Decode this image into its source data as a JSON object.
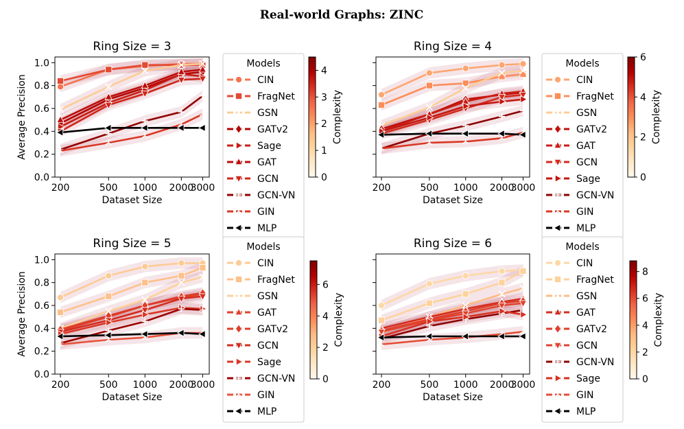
{
  "figure_title": "Real-world Graphs: ZINC",
  "chart_data": [
    {
      "type": "line",
      "title": "Ring Size = 3",
      "xlabel": "Dataset Size",
      "ylabel": "Average Precision",
      "xscale": "log",
      "xlim": [
        180,
        3400
      ],
      "ylim": [
        0.0,
        1.05
      ],
      "x_ticks": [
        200,
        500,
        1000,
        2000,
        3000
      ],
      "x_tick_labels": [
        "200",
        "500",
        "1000",
        "2000",
        "3000"
      ],
      "y_ticks": [
        0.0,
        0.2,
        0.4,
        0.6,
        0.8,
        1.0
      ],
      "y_tick_labels": [
        "0.0",
        "0.2",
        "0.4",
        "0.6",
        "0.8",
        "1.0"
      ],
      "legend_title": "Models",
      "colorbar": {
        "label": "Complexity",
        "min": 0,
        "max": 4.5,
        "ticks": [
          0,
          1,
          2,
          3,
          4
        ],
        "tick_labels": [
          "0",
          "1",
          "2",
          "3",
          "4"
        ]
      },
      "x": [
        200,
        500,
        1000,
        2000,
        3000
      ],
      "series": [
        {
          "name": "CIN",
          "complexity": 2.6,
          "values": [
            0.79,
            0.94,
            0.97,
            0.99,
            0.99
          ]
        },
        {
          "name": "FragNet",
          "complexity": 3.1,
          "values": [
            0.84,
            0.94,
            0.98,
            0.98,
            0.98
          ]
        },
        {
          "name": "GSN",
          "complexity": 1.3,
          "values": [
            0.59,
            0.79,
            0.93,
            0.98,
            0.99
          ]
        },
        {
          "name": "GATv2",
          "complexity": 3.9,
          "values": [
            0.47,
            0.68,
            0.78,
            0.9,
            0.92
          ]
        },
        {
          "name": "Sage",
          "complexity": 3.6,
          "values": [
            0.44,
            0.65,
            0.76,
            0.9,
            0.88
          ]
        },
        {
          "name": "GAT",
          "complexity": 3.8,
          "values": [
            0.5,
            0.7,
            0.8,
            0.92,
            0.94
          ]
        },
        {
          "name": "GCN",
          "complexity": 3.5,
          "values": [
            0.4,
            0.63,
            0.73,
            0.85,
            0.86
          ]
        },
        {
          "name": "GCN-VN",
          "complexity": 4.3,
          "values": [
            0.24,
            0.38,
            0.49,
            0.57,
            0.71
          ]
        },
        {
          "name": "GIN",
          "complexity": 3.3,
          "values": [
            0.23,
            0.3,
            0.36,
            0.46,
            0.55
          ]
        },
        {
          "name": "MLP",
          "complexity": 0,
          "values": [
            0.39,
            0.43,
            0.43,
            0.43,
            0.43
          ]
        }
      ]
    },
    {
      "type": "line",
      "title": "Ring Size = 4",
      "xlabel": "Dataset Size",
      "ylabel": "",
      "xscale": "log",
      "xlim": [
        180,
        3400
      ],
      "ylim": [
        0.0,
        1.05
      ],
      "x_ticks": [
        200,
        500,
        1000,
        2000,
        3000
      ],
      "x_tick_labels": [
        "200",
        "500",
        "1000",
        "2000",
        "3000"
      ],
      "y_ticks": [
        0.0,
        0.2,
        0.4,
        0.6,
        0.8,
        1.0
      ],
      "y_tick_labels": [
        "",
        "",
        "",
        "",
        "",
        ""
      ],
      "legend_title": "Models",
      "colorbar": {
        "label": "Complexity",
        "min": 0,
        "max": 6,
        "ticks": [
          0,
          2,
          4,
          6
        ],
        "tick_labels": [
          "0",
          "2",
          "4",
          "6"
        ]
      },
      "x": [
        200,
        500,
        1000,
        2000,
        3000
      ],
      "series": [
        {
          "name": "CIN",
          "complexity": 2.6,
          "values": [
            0.72,
            0.91,
            0.95,
            0.98,
            0.99
          ]
        },
        {
          "name": "FragNet",
          "complexity": 3.0,
          "values": [
            0.63,
            0.8,
            0.82,
            0.88,
            0.9
          ]
        },
        {
          "name": "GSN",
          "complexity": 1.7,
          "values": [
            0.45,
            0.61,
            0.78,
            0.91,
            0.93
          ]
        },
        {
          "name": "GATv2",
          "complexity": 5.0,
          "values": [
            0.42,
            0.55,
            0.68,
            0.72,
            0.74
          ]
        },
        {
          "name": "GAT",
          "complexity": 4.8,
          "values": [
            0.4,
            0.55,
            0.66,
            0.73,
            0.75
          ]
        },
        {
          "name": "GCN",
          "complexity": 4.6,
          "values": [
            0.38,
            0.5,
            0.6,
            0.7,
            0.72
          ]
        },
        {
          "name": "Sage",
          "complexity": 4.9,
          "values": [
            0.4,
            0.52,
            0.62,
            0.66,
            0.68
          ]
        },
        {
          "name": "GCN-VN",
          "complexity": 5.8,
          "values": [
            0.25,
            0.38,
            0.45,
            0.53,
            0.58
          ]
        },
        {
          "name": "GIN",
          "complexity": 4.4,
          "values": [
            0.25,
            0.3,
            0.31,
            0.34,
            0.39
          ]
        },
        {
          "name": "MLP",
          "complexity": 0,
          "values": [
            0.37,
            0.38,
            0.38,
            0.38,
            0.37
          ]
        }
      ]
    },
    {
      "type": "line",
      "title": "Ring Size = 5",
      "xlabel": "Dataset Size",
      "ylabel": "Average Precision",
      "xscale": "log",
      "xlim": [
        180,
        3400
      ],
      "ylim": [
        0.0,
        1.05
      ],
      "x_ticks": [
        200,
        500,
        1000,
        2000,
        3000
      ],
      "x_tick_labels": [
        "200",
        "500",
        "1000",
        "2000",
        "3000"
      ],
      "y_ticks": [
        0.0,
        0.2,
        0.4,
        0.6,
        0.8,
        1.0
      ],
      "y_tick_labels": [
        "0.0",
        "0.2",
        "0.4",
        "0.6",
        "0.8",
        "1.0"
      ],
      "legend_title": "Models",
      "colorbar": {
        "label": "Complexity",
        "min": 0,
        "max": 7.5,
        "ticks": [
          0,
          2,
          4,
          6
        ],
        "tick_labels": [
          "0",
          "2",
          "4",
          "6"
        ]
      },
      "x": [
        200,
        500,
        1000,
        2000,
        3000
      ],
      "series": [
        {
          "name": "CIN",
          "complexity": 2.2,
          "values": [
            0.67,
            0.86,
            0.94,
            0.97,
            0.97
          ]
        },
        {
          "name": "FragNet",
          "complexity": 2.6,
          "values": [
            0.54,
            0.68,
            0.8,
            0.86,
            0.93
          ]
        },
        {
          "name": "GSN",
          "complexity": 2.0,
          "values": [
            0.4,
            0.55,
            0.65,
            0.8,
            0.85
          ]
        },
        {
          "name": "GAT",
          "complexity": 5.3,
          "values": [
            0.38,
            0.5,
            0.6,
            0.67,
            0.7
          ]
        },
        {
          "name": "GATv2",
          "complexity": 5.4,
          "values": [
            0.39,
            0.51,
            0.6,
            0.68,
            0.71
          ]
        },
        {
          "name": "GCN",
          "complexity": 5.7,
          "values": [
            0.37,
            0.47,
            0.56,
            0.66,
            0.68
          ]
        },
        {
          "name": "Sage",
          "complexity": 5.5,
          "values": [
            0.35,
            0.45,
            0.52,
            0.58,
            0.57
          ]
        },
        {
          "name": "GCN-VN",
          "complexity": 7.0,
          "values": [
            0.27,
            0.38,
            0.46,
            0.57,
            0.56
          ]
        },
        {
          "name": "GIN",
          "complexity": 5.0,
          "values": [
            0.26,
            0.3,
            0.32,
            0.36,
            0.36
          ]
        },
        {
          "name": "MLP",
          "complexity": 0,
          "values": [
            0.33,
            0.34,
            0.35,
            0.36,
            0.35
          ]
        }
      ]
    },
    {
      "type": "line",
      "title": "Ring Size = 6",
      "xlabel": "Dataset Size",
      "ylabel": "",
      "xscale": "log",
      "xlim": [
        180,
        3400
      ],
      "ylim": [
        0.0,
        1.05
      ],
      "x_ticks": [
        200,
        500,
        1000,
        2000,
        3000
      ],
      "x_tick_labels": [
        "200",
        "500",
        "1000",
        "2000",
        "3000"
      ],
      "y_ticks": [
        0.0,
        0.2,
        0.4,
        0.6,
        0.8,
        1.0
      ],
      "y_tick_labels": [
        "",
        "",
        "",
        "",
        "",
        ""
      ],
      "legend_title": "Models",
      "colorbar": {
        "label": "Complexity",
        "min": 0,
        "max": 8.8,
        "ticks": [
          0,
          2,
          4,
          6,
          8
        ],
        "tick_labels": [
          "0",
          "2",
          "4",
          "6",
          "8"
        ]
      },
      "x": [
        200,
        500,
        1000,
        2000,
        3000
      ],
      "series": [
        {
          "name": "CIN",
          "complexity": 2.0,
          "values": [
            0.6,
            0.79,
            0.86,
            0.9,
            0.91
          ]
        },
        {
          "name": "FragNet",
          "complexity": 2.3,
          "values": [
            0.47,
            0.62,
            0.7,
            0.8,
            0.9
          ]
        },
        {
          "name": "GSN",
          "complexity": 3.3,
          "values": [
            0.36,
            0.5,
            0.6,
            0.7,
            0.75
          ]
        },
        {
          "name": "GAT",
          "complexity": 6.7,
          "values": [
            0.4,
            0.5,
            0.57,
            0.63,
            0.66
          ]
        },
        {
          "name": "GATv2",
          "complexity": 6.3,
          "values": [
            0.38,
            0.48,
            0.55,
            0.62,
            0.64
          ]
        },
        {
          "name": "GCN",
          "complexity": 6.2,
          "values": [
            0.37,
            0.47,
            0.53,
            0.6,
            0.62
          ]
        },
        {
          "name": "GCN-VN",
          "complexity": 8.5,
          "values": [
            0.31,
            0.42,
            0.48,
            0.53,
            0.56
          ]
        },
        {
          "name": "Sage",
          "complexity": 6.6,
          "values": [
            0.33,
            0.46,
            0.5,
            0.55,
            0.52
          ]
        },
        {
          "name": "GIN",
          "complexity": 6.0,
          "values": [
            0.26,
            0.3,
            0.32,
            0.35,
            0.37
          ]
        },
        {
          "name": "MLP",
          "complexity": 0,
          "values": [
            0.32,
            0.33,
            0.33,
            0.33,
            0.33
          ]
        }
      ]
    }
  ],
  "markers": {
    "CIN": "circle",
    "FragNet": "square",
    "GSN": "x",
    "GATv2": "diamond",
    "GAT": "triangle-up",
    "GCN": "triangle-down",
    "Sage": "triangle-right",
    "GCN-VN": "plus",
    "GIN": "tri",
    "MLP": "triangle-left"
  },
  "colors": {
    "cmap": [
      "#fff7ec",
      "#fee8c8",
      "#fdd49e",
      "#fdbb84",
      "#fc8d59",
      "#ef6548",
      "#d7301f",
      "#b30000",
      "#7f0000"
    ],
    "mlp": "#000000",
    "band": "#b5485a",
    "axis": "#000000",
    "legend_border": "#cccccc"
  }
}
